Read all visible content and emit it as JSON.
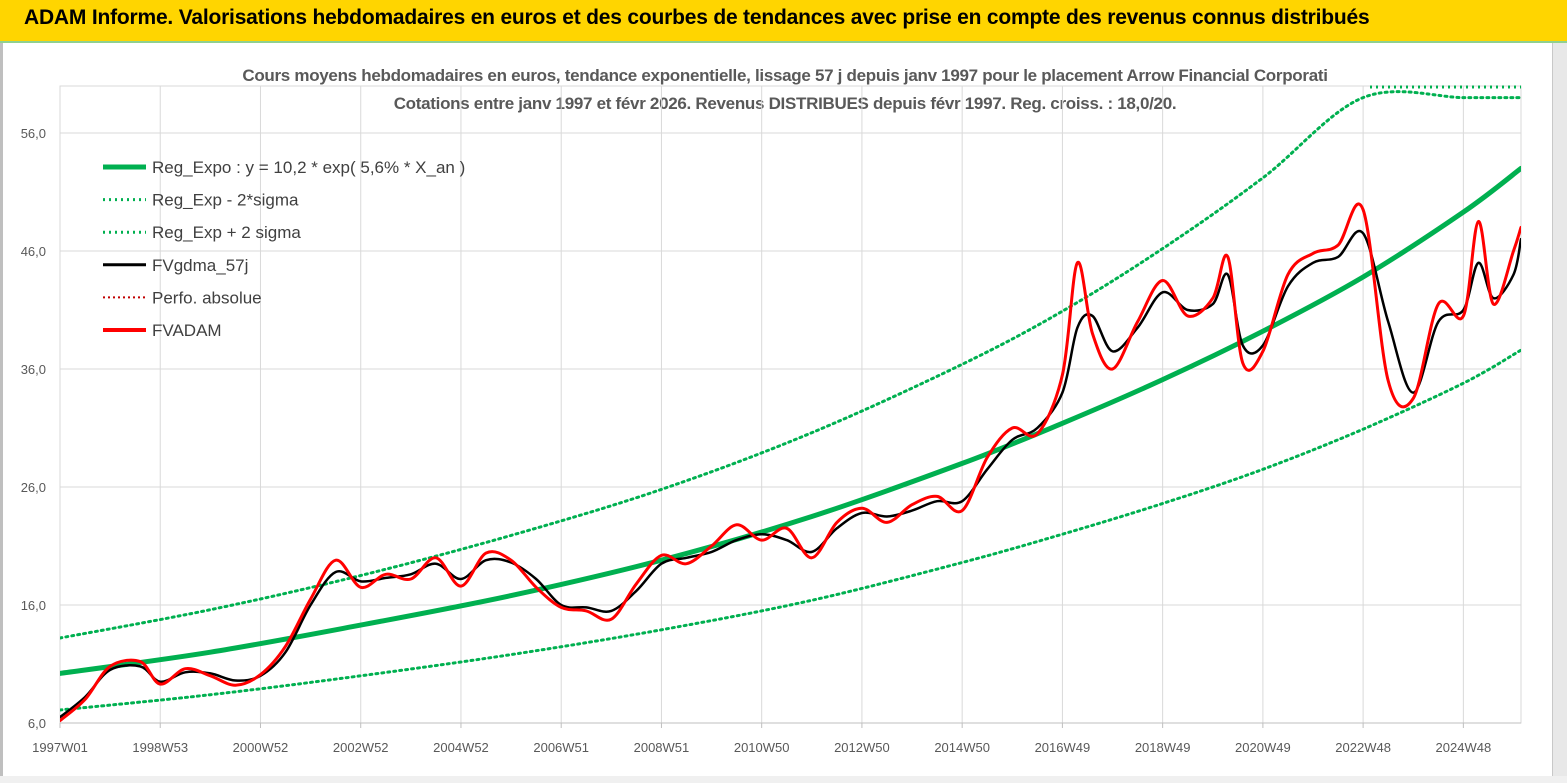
{
  "header": {
    "title": "ADAM Informe. Valorisations hebdomadaires en euros et des courbes de tendances avec prise en compte des revenus connus distribués"
  },
  "chart_data": {
    "type": "line",
    "title": "Cours moyens hebdomadaires en euros, tendance exponentielle, lissage 57 j depuis janv 1997  pour le placement Arrow Financial Corporati",
    "subtitle": "Cotations entre janv 1997 et févr 2026. Revenus DISTRIBUES depuis févr 1997. Reg. croiss. : 18,0/20.",
    "xlabel": "",
    "ylabel": "",
    "x_range": [
      1997.0,
      2026.15
    ],
    "ylim": [
      6,
      59
    ],
    "yticks": [
      6,
      16,
      26,
      36,
      46,
      56
    ],
    "ytick_labels": [
      "6,0",
      "16,0",
      "26,0",
      "36,0",
      "46,0",
      "56,0"
    ],
    "xtick_labels": [
      "1997W01",
      "1998W53",
      "2000W52",
      "2002W52",
      "2004W52",
      "2006W51",
      "2008W51",
      "2010W50",
      "2012W50",
      "2014W50",
      "2016W49",
      "2018W49",
      "2020W49",
      "2022W48",
      "2024W48"
    ],
    "xtick_positions": [
      1997.0,
      1999.0,
      2001.0,
      2003.0,
      2005.0,
      2007.0,
      2009.0,
      2011.0,
      2013.0,
      2015.0,
      2017.0,
      2019.0,
      2021.0,
      2023.0,
      2025.0
    ],
    "grid": true,
    "legend_position": "top-left",
    "colors": {
      "reg_expo": "#00b050",
      "sigma_lines": "#00b050",
      "fvgdma": "#000000",
      "perfo": "#c00000",
      "fvadam": "#ff0000"
    },
    "series": [
      {
        "name": "Reg_Expo : y = 10,2 * exp( 5,6% *  X_an )",
        "style": "solid-thick",
        "x": [
          1997.0,
          2000.0,
          2003.0,
          2006.0,
          2009.0,
          2012.0,
          2015.0,
          2017.0,
          2019.0,
          2021.0,
          2023.0,
          2025.0,
          2026.15
        ],
        "values": [
          10.2,
          12.0,
          14.3,
          16.8,
          19.8,
          23.5,
          28.0,
          31.4,
          35.1,
          39.2,
          43.8,
          49.3,
          53.0
        ]
      },
      {
        "name": "Reg_Exp - 2*sigma",
        "style": "dotted",
        "x": [
          1997.0,
          2000.0,
          2003.0,
          2006.0,
          2009.0,
          2012.0,
          2015.0,
          2017.0,
          2019.0,
          2021.0,
          2023.0,
          2025.0,
          2026.15
        ],
        "values": [
          7.1,
          8.4,
          10.0,
          11.8,
          13.9,
          16.4,
          19.6,
          22.0,
          24.6,
          27.5,
          30.9,
          34.8,
          37.6
        ]
      },
      {
        "name": "Reg_Exp + 2 sigma",
        "style": "dotted",
        "x": [
          1997.0,
          2000.0,
          2003.0,
          2006.0,
          2009.0,
          2012.0,
          2015.0,
          2017.0,
          2019.0,
          2021.0,
          2023.0,
          2025.0,
          2026.15
        ],
        "values": [
          13.2,
          15.6,
          18.5,
          21.9,
          25.8,
          30.6,
          36.4,
          40.9,
          46.2,
          52.2,
          59.0,
          59.0,
          59.0
        ]
      },
      {
        "name": "FVgdma_57j",
        "style": "solid-thin",
        "x": [
          1997.0,
          1997.5,
          1998.0,
          1998.6,
          1999.0,
          1999.5,
          2000.0,
          2000.5,
          2001.0,
          2001.5,
          2002.0,
          2002.5,
          2003.0,
          2003.5,
          2004.0,
          2004.5,
          2005.0,
          2005.5,
          2006.0,
          2006.5,
          2007.0,
          2007.5,
          2008.0,
          2008.5,
          2009.0,
          2009.5,
          2010.0,
          2010.5,
          2011.0,
          2011.5,
          2012.0,
          2012.5,
          2013.0,
          2013.5,
          2014.0,
          2014.5,
          2015.0,
          2015.5,
          2016.0,
          2016.5,
          2017.0,
          2017.3,
          2017.6,
          2018.0,
          2018.5,
          2019.0,
          2019.5,
          2020.0,
          2020.3,
          2020.6,
          2021.0,
          2021.5,
          2022.0,
          2022.5,
          2023.0,
          2023.5,
          2024.0,
          2024.5,
          2025.0,
          2025.3,
          2025.6,
          2026.0,
          2026.15
        ],
        "values": [
          6.5,
          8.2,
          10.5,
          10.8,
          9.5,
          10.3,
          10.2,
          9.6,
          10.0,
          12.0,
          16.0,
          18.8,
          18.0,
          18.3,
          18.6,
          19.5,
          18.2,
          19.8,
          19.6,
          18.2,
          16.0,
          15.8,
          15.5,
          17.2,
          19.5,
          20.0,
          20.5,
          21.5,
          22.0,
          21.5,
          20.5,
          22.5,
          23.8,
          23.5,
          24.0,
          24.8,
          24.8,
          27.5,
          30.0,
          31.0,
          34.0,
          39.5,
          40.5,
          37.5,
          39.5,
          42.5,
          41.0,
          41.5,
          44.0,
          38.0,
          38.0,
          43.0,
          45.0,
          45.5,
          47.5,
          40.0,
          34.0,
          40.0,
          41.0,
          45.0,
          42.0,
          44.0,
          47.0
        ]
      },
      {
        "name": "Perfo. absolue",
        "style": "dotted",
        "x": [],
        "values": []
      },
      {
        "name": "FVADAM",
        "style": "solid-medium",
        "x": [
          1997.0,
          1997.5,
          1998.0,
          1998.6,
          1999.0,
          1999.5,
          2000.0,
          2000.5,
          2001.0,
          2001.5,
          2002.0,
          2002.5,
          2003.0,
          2003.5,
          2004.0,
          2004.5,
          2005.0,
          2005.5,
          2006.0,
          2006.5,
          2007.0,
          2007.5,
          2008.0,
          2008.5,
          2009.0,
          2009.5,
          2010.0,
          2010.5,
          2011.0,
          2011.5,
          2012.0,
          2012.5,
          2013.0,
          2013.5,
          2014.0,
          2014.5,
          2015.0,
          2015.5,
          2016.0,
          2016.5,
          2017.0,
          2017.3,
          2017.6,
          2018.0,
          2018.5,
          2019.0,
          2019.5,
          2020.0,
          2020.3,
          2020.6,
          2021.0,
          2021.5,
          2022.0,
          2022.5,
          2023.0,
          2023.5,
          2024.0,
          2024.5,
          2025.0,
          2025.3,
          2025.6,
          2026.0,
          2026.15
        ],
        "values": [
          6.2,
          8.0,
          10.8,
          11.2,
          9.3,
          10.6,
          10.0,
          9.2,
          10.1,
          12.5,
          16.5,
          19.8,
          17.5,
          18.6,
          18.2,
          20.0,
          17.6,
          20.4,
          19.8,
          17.5,
          15.8,
          15.5,
          14.8,
          17.8,
          20.2,
          19.5,
          21.0,
          22.8,
          21.5,
          22.5,
          20.0,
          23.0,
          24.2,
          23.0,
          24.5,
          25.2,
          24.0,
          28.5,
          31.0,
          30.5,
          35.5,
          45.0,
          39.0,
          36.0,
          40.0,
          43.5,
          40.5,
          42.0,
          45.5,
          36.5,
          37.5,
          44.0,
          45.8,
          46.5,
          49.5,
          35.0,
          33.5,
          41.5,
          40.5,
          48.5,
          41.5,
          46.0,
          48.0
        ]
      }
    ]
  }
}
